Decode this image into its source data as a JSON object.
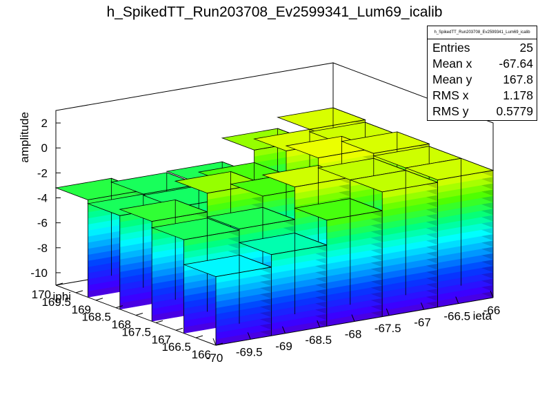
{
  "chart_data": {
    "type": "lego3d",
    "title": "h_SpikedTT_Run203708_Ev2599341_Lum69_icalib",
    "xlabel": "ieta",
    "ylabel": "iphi",
    "zlabel": "amplitude",
    "xlim": [
      -70,
      -66
    ],
    "ylim": [
      166,
      170
    ],
    "zlim": [
      -11,
      3
    ],
    "x_ticks": [
      "-70",
      "-69.5",
      "-69",
      "-68.5",
      "-68",
      "-67.5",
      "-67",
      "-66.5",
      "-66"
    ],
    "y_ticks": [
      "166",
      "166.5",
      "167",
      "167.5",
      "168",
      "168.5",
      "169",
      "169.5",
      "170"
    ],
    "z_ticks": [
      "-10",
      "-8",
      "-6",
      "-4",
      "-2",
      "0",
      "2"
    ],
    "x_edges": [
      -70,
      -69.2,
      -68.4,
      -67.6,
      -66.8,
      -66
    ],
    "y_edges": [
      166,
      166.8,
      167.6,
      168.4,
      169.2,
      170
    ],
    "z_values": [
      [
        -5.5,
        -4.5,
        -2.5,
        -1.0,
        -0.8
      ],
      [
        -3.5,
        -3.4,
        -0.8,
        -1.0,
        -0.8
      ],
      [
        -3.0,
        -1.5,
        -2.5,
        -0.2,
        -0.6
      ],
      [
        -3.5,
        -3.6,
        -2.5,
        -0.6,
        -0.8
      ],
      [
        -3.2,
        -3.5,
        -3.4,
        -1.5,
        -0.6
      ]
    ]
  },
  "stats": {
    "name": "h_SpikedTT_Run203708_Ev2599341_Lum69_icalib",
    "rows": [
      {
        "label": "Entries",
        "value": "25"
      },
      {
        "label": "Mean x",
        "value": "-67.64"
      },
      {
        "label": "Mean y",
        "value": "167.8"
      },
      {
        "label": "RMS x",
        "value": "1.178"
      },
      {
        "label": "RMS y",
        "value": "0.5779"
      }
    ]
  }
}
